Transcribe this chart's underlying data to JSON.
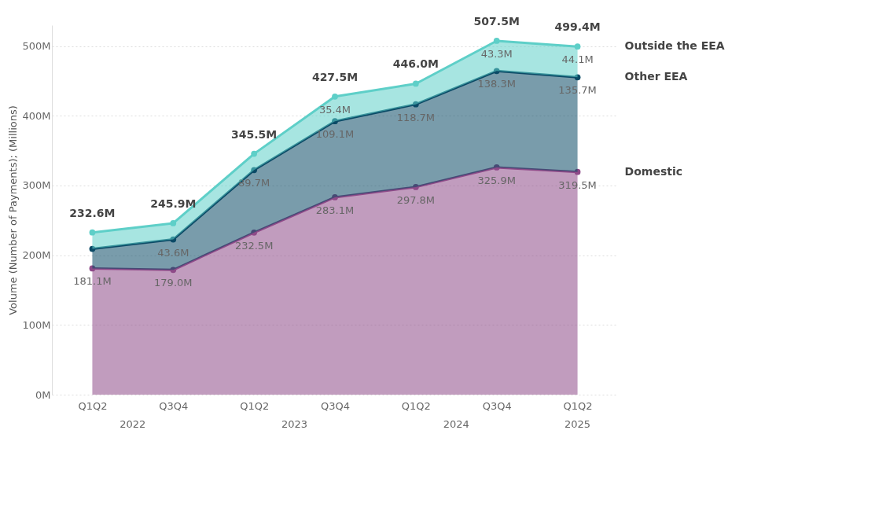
{
  "chart_data": {
    "type": "area",
    "stacked": true,
    "ylabel": "Volume (Number of Payments); (Millions)",
    "categories": [
      "Q1Q2",
      "Q3Q4",
      "Q1Q2",
      "Q3Q4",
      "Q1Q2",
      "Q3Q4",
      "Q1Q2"
    ],
    "series": [
      {
        "name": "Domestic",
        "color": "#8e4a88",
        "values": [
          181.1,
          179.0,
          232.5,
          283.1,
          297.8,
          325.9,
          319.5
        ],
        "value_labels": [
          "181.1M",
          "179.0M",
          "232.5M",
          "283.1M",
          "297.8M",
          "325.9M",
          "319.5M"
        ]
      },
      {
        "name": "Other EEA",
        "color": "#0b4a66",
        "values": [
          28.0,
          43.6,
          89.7,
          109.1,
          118.7,
          138.3,
          135.7
        ],
        "value_labels": [
          null,
          "43.6M",
          "89.7M",
          "109.1M",
          "118.7M",
          "138.3M",
          "135.7M"
        ]
      },
      {
        "name": "Outside the EEA",
        "color": "#5ecfc8",
        "values": [
          23.5,
          23.3,
          23.3,
          35.4,
          29.5,
          43.3,
          44.1
        ],
        "value_labels": [
          null,
          null,
          null,
          "35.4M",
          null,
          "43.3M",
          "44.1M"
        ]
      }
    ],
    "totals": [
      "232.6M",
      "245.9M",
      "345.5M",
      "427.5M",
      "446.0M",
      "507.5M",
      "499.4M"
    ],
    "annotations": [
      "2022",
      "2023",
      "2024",
      "2025"
    ],
    "ylim": [
      0,
      530
    ],
    "yticks": [
      {
        "value": 0,
        "label": "0M"
      },
      {
        "value": 100,
        "label": "100M"
      },
      {
        "value": 200,
        "label": "200M"
      },
      {
        "value": 300,
        "label": "300M"
      },
      {
        "value": 400,
        "label": "400M"
      },
      {
        "value": 500,
        "label": "500M"
      }
    ],
    "grid": "y",
    "marker": "circle",
    "line_style": "solid"
  }
}
